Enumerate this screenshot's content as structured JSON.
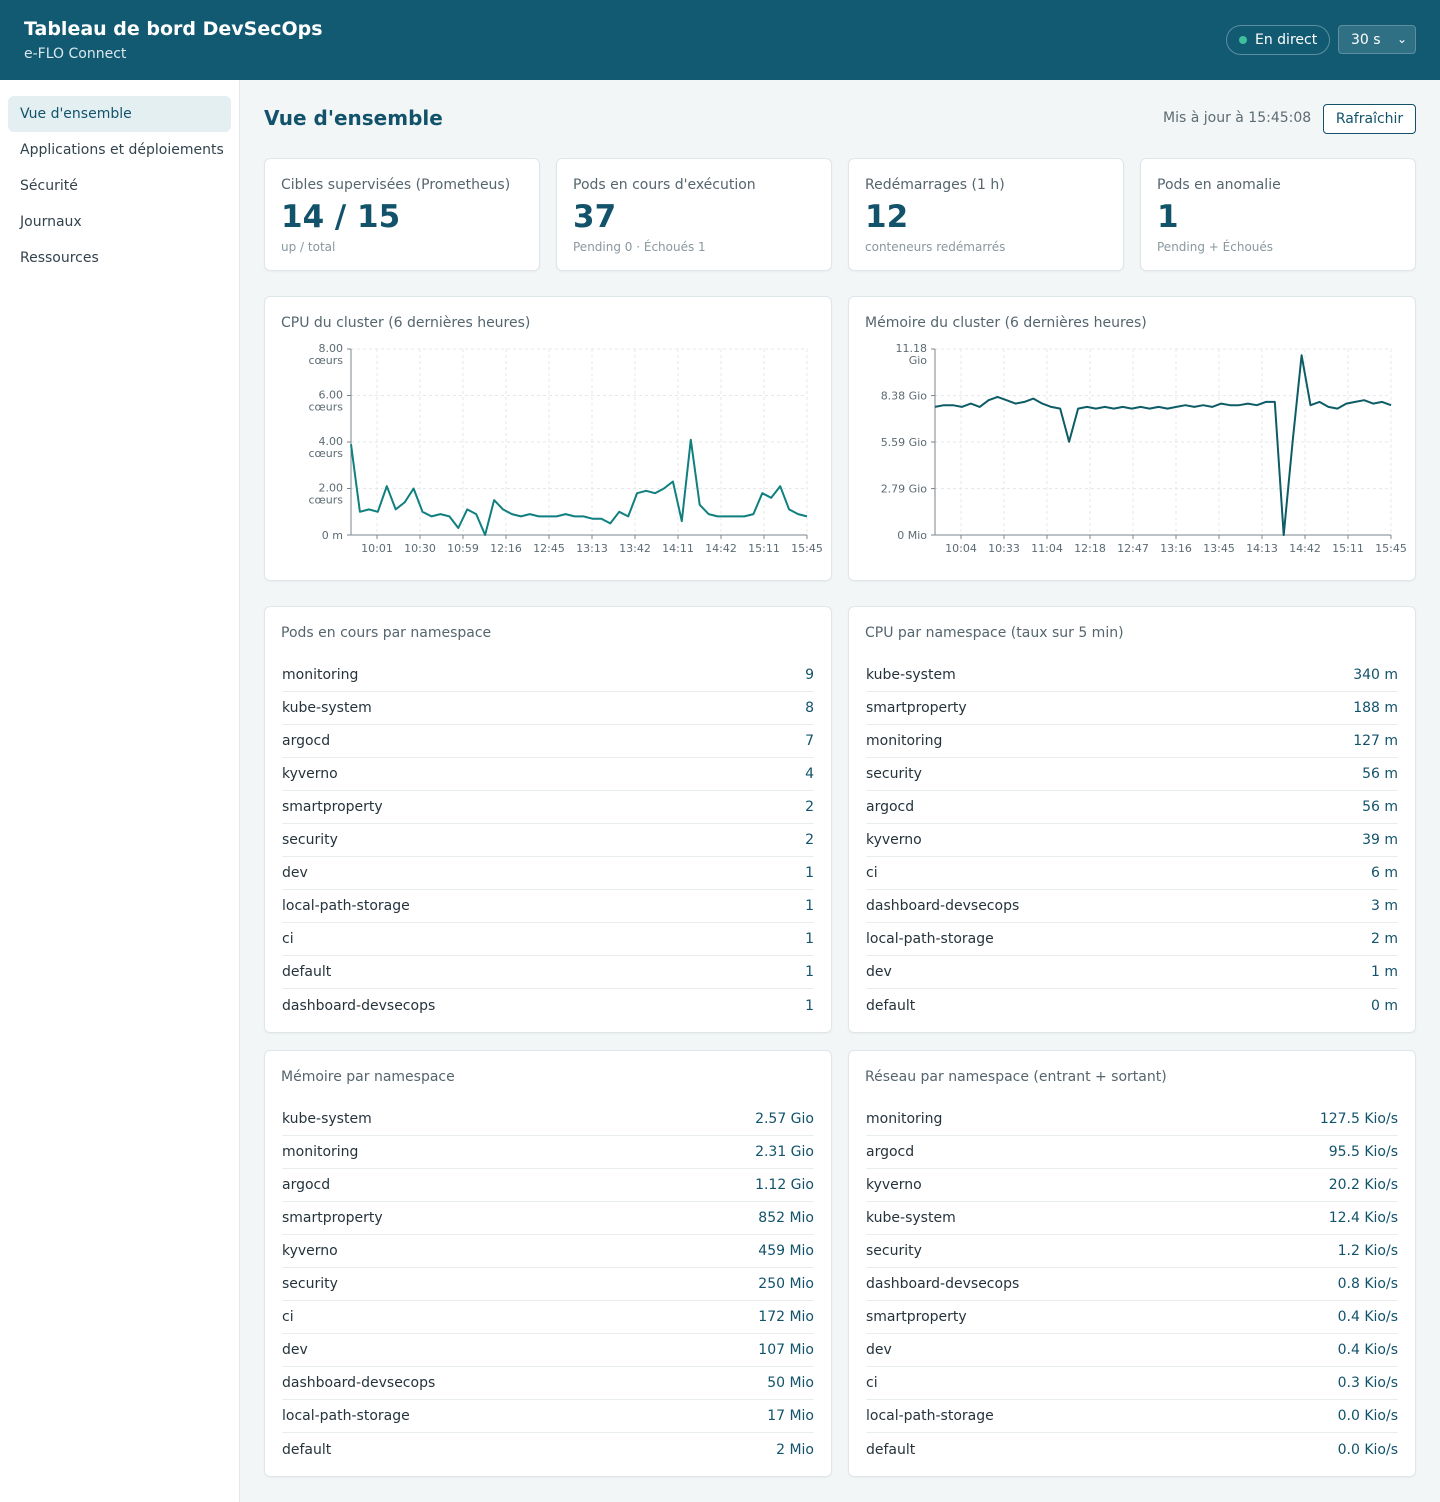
{
  "header": {
    "title": "Tableau de bord DevSecOps",
    "subtitle": "e-FLO Connect",
    "live_label": "En direct",
    "interval_value": "30 s"
  },
  "sidebar": {
    "items": [
      {
        "label": "Vue d'ensemble",
        "active": true
      },
      {
        "label": "Applications et déploiements",
        "active": false
      },
      {
        "label": "Sécurité",
        "active": false
      },
      {
        "label": "Journaux",
        "active": false
      },
      {
        "label": "Ressources",
        "active": false
      }
    ]
  },
  "main": {
    "title": "Vue d'ensemble",
    "updated": "Mis à jour à 15:45:08",
    "refresh_label": "Rafraîchir"
  },
  "kpis": [
    {
      "label": "Cibles supervisées (Prometheus)",
      "value": "14 / 15",
      "sub": "up / total"
    },
    {
      "label": "Pods en cours d'exécution",
      "value": "37",
      "sub": "Pending 0 · Échoués 1"
    },
    {
      "label": "Redémarrages (1 h)",
      "value": "12",
      "sub": "conteneurs redémarrés"
    },
    {
      "label": "Pods en anomalie",
      "value": "1",
      "sub": "Pending + Échoués"
    }
  ],
  "colors": {
    "primary": "#12536b",
    "header_bg": "#115a72",
    "line": "#0f7f7f",
    "line_mem": "#0d5c66",
    "live_dot": "#3fbf9f"
  },
  "chart_data": [
    {
      "type": "line",
      "title": "CPU du cluster (6 dernières heures)",
      "yticks": [
        {
          "v": 0,
          "l1": "0 m",
          "l2": ""
        },
        {
          "v": 2,
          "l1": "2.00",
          "l2": "cœurs"
        },
        {
          "v": 4,
          "l1": "4.00",
          "l2": "cœurs"
        },
        {
          "v": 6,
          "l1": "6.00",
          "l2": "cœurs"
        },
        {
          "v": 8,
          "l1": "8.00",
          "l2": "cœurs"
        }
      ],
      "xticks": [
        "10:01",
        "10:30",
        "10:59",
        "12:16",
        "12:45",
        "13:13",
        "13:42",
        "14:11",
        "14:42",
        "15:11",
        "15:45"
      ],
      "ylim": [
        0,
        8
      ],
      "grid": true,
      "values": [
        3.9,
        1.0,
        1.1,
        1.0,
        2.1,
        1.1,
        1.4,
        2.0,
        1.0,
        0.8,
        0.9,
        0.8,
        0.3,
        1.1,
        0.9,
        0.0,
        1.5,
        1.1,
        0.9,
        0.8,
        0.9,
        0.8,
        0.8,
        0.8,
        0.9,
        0.8,
        0.8,
        0.7,
        0.7,
        0.5,
        1.0,
        0.8,
        1.8,
        1.9,
        1.8,
        2.0,
        2.3,
        0.6,
        4.1,
        1.3,
        0.9,
        0.8,
        0.8,
        0.8,
        0.8,
        0.9,
        1.8,
        1.6,
        2.1,
        1.1,
        0.9,
        0.8
      ]
    },
    {
      "type": "line",
      "title": "Mémoire du cluster (6 dernières heures)",
      "yticks": [
        {
          "v": 0,
          "l1": "0 Mio",
          "l2": ""
        },
        {
          "v": 2.79,
          "l1": "2.79 Gio",
          "l2": ""
        },
        {
          "v": 5.59,
          "l1": "5.59 Gio",
          "l2": ""
        },
        {
          "v": 8.38,
          "l1": "8.38 Gio",
          "l2": ""
        },
        {
          "v": 11.18,
          "l1": "11.18",
          "l2": "Gio"
        }
      ],
      "xticks": [
        "10:04",
        "10:33",
        "11:04",
        "12:18",
        "12:47",
        "13:16",
        "13:45",
        "14:13",
        "14:42",
        "15:11",
        "15:45"
      ],
      "ylim": [
        0,
        11.18
      ],
      "grid": true,
      "values": [
        7.7,
        7.8,
        7.8,
        7.7,
        7.9,
        7.7,
        8.1,
        8.3,
        8.1,
        7.9,
        8.0,
        8.2,
        7.9,
        7.7,
        7.6,
        5.6,
        7.6,
        7.7,
        7.6,
        7.7,
        7.6,
        7.7,
        7.6,
        7.7,
        7.6,
        7.7,
        7.6,
        7.7,
        7.8,
        7.7,
        7.8,
        7.7,
        7.9,
        7.8,
        7.8,
        7.9,
        7.8,
        8.0,
        8.0,
        0.0,
        5.6,
        10.8,
        7.8,
        8.0,
        7.7,
        7.6,
        7.9,
        8.0,
        8.1,
        7.9,
        8.0,
        7.8
      ]
    }
  ],
  "tables": {
    "pods_ns": {
      "title": "Pods en cours par namespace",
      "rows": [
        {
          "name": "monitoring",
          "value": "9"
        },
        {
          "name": "kube-system",
          "value": "8"
        },
        {
          "name": "argocd",
          "value": "7"
        },
        {
          "name": "kyverno",
          "value": "4"
        },
        {
          "name": "smartproperty",
          "value": "2"
        },
        {
          "name": "security",
          "value": "2"
        },
        {
          "name": "dev",
          "value": "1"
        },
        {
          "name": "local-path-storage",
          "value": "1"
        },
        {
          "name": "ci",
          "value": "1"
        },
        {
          "name": "default",
          "value": "1"
        },
        {
          "name": "dashboard-devsecops",
          "value": "1"
        }
      ]
    },
    "cpu_ns": {
      "title": "CPU par namespace (taux sur 5 min)",
      "rows": [
        {
          "name": "kube-system",
          "value": "340 m"
        },
        {
          "name": "smartproperty",
          "value": "188 m"
        },
        {
          "name": "monitoring",
          "value": "127 m"
        },
        {
          "name": "security",
          "value": "56 m"
        },
        {
          "name": "argocd",
          "value": "56 m"
        },
        {
          "name": "kyverno",
          "value": "39 m"
        },
        {
          "name": "ci",
          "value": "6 m"
        },
        {
          "name": "dashboard-devsecops",
          "value": "3 m"
        },
        {
          "name": "local-path-storage",
          "value": "2 m"
        },
        {
          "name": "dev",
          "value": "1 m"
        },
        {
          "name": "default",
          "value": "0 m"
        }
      ]
    },
    "mem_ns": {
      "title": "Mémoire par namespace",
      "rows": [
        {
          "name": "kube-system",
          "value": "2.57 Gio"
        },
        {
          "name": "monitoring",
          "value": "2.31 Gio"
        },
        {
          "name": "argocd",
          "value": "1.12 Gio"
        },
        {
          "name": "smartproperty",
          "value": "852 Mio"
        },
        {
          "name": "kyverno",
          "value": "459 Mio"
        },
        {
          "name": "security",
          "value": "250 Mio"
        },
        {
          "name": "ci",
          "value": "172 Mio"
        },
        {
          "name": "dev",
          "value": "107 Mio"
        },
        {
          "name": "dashboard-devsecops",
          "value": "50 Mio"
        },
        {
          "name": "local-path-storage",
          "value": "17 Mio"
        },
        {
          "name": "default",
          "value": "2 Mio"
        }
      ]
    },
    "net_ns": {
      "title": "Réseau par namespace (entrant + sortant)",
      "rows": [
        {
          "name": "monitoring",
          "value": "127.5 Kio/s"
        },
        {
          "name": "argocd",
          "value": "95.5 Kio/s"
        },
        {
          "name": "kyverno",
          "value": "20.2 Kio/s"
        },
        {
          "name": "kube-system",
          "value": "12.4 Kio/s"
        },
        {
          "name": "security",
          "value": "1.2 Kio/s"
        },
        {
          "name": "dashboard-devsecops",
          "value": "0.8 Kio/s"
        },
        {
          "name": "smartproperty",
          "value": "0.4 Kio/s"
        },
        {
          "name": "dev",
          "value": "0.4 Kio/s"
        },
        {
          "name": "ci",
          "value": "0.3 Kio/s"
        },
        {
          "name": "local-path-storage",
          "value": "0.0 Kio/s"
        },
        {
          "name": "default",
          "value": "0.0 Kio/s"
        }
      ]
    }
  }
}
